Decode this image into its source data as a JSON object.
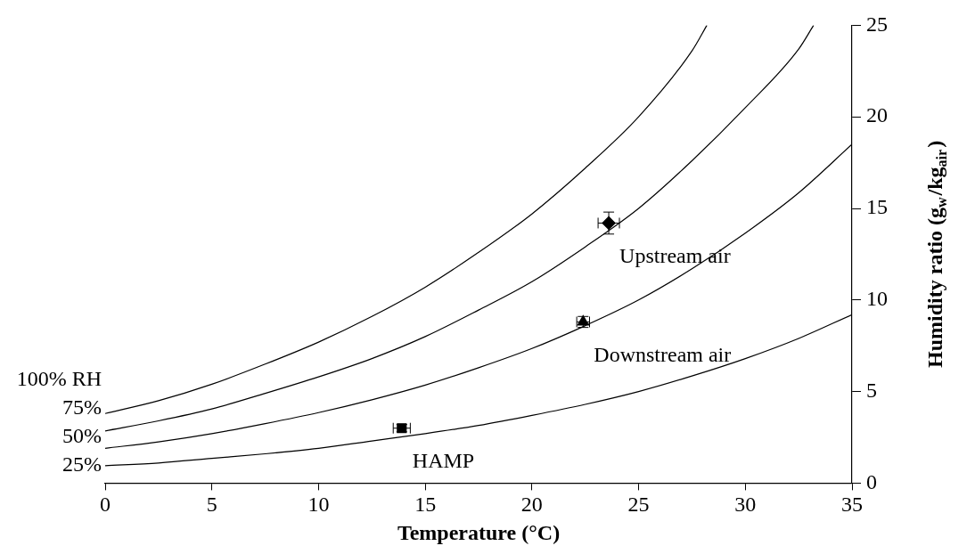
{
  "chart_data": {
    "type": "line",
    "xlabel": "Temperature (°C)",
    "ylabel": "Humidity ratio (g$_{w}$/kg$_{air}$)",
    "xlim": [
      0,
      35
    ],
    "ylim": [
      0,
      25
    ],
    "xticks": [
      0,
      5,
      10,
      15,
      20,
      25,
      30,
      35
    ],
    "yticks": [
      0,
      5,
      10,
      15,
      20,
      25
    ],
    "marker": "none",
    "series": [
      {
        "name": "100% RH",
        "color": "#000000",
        "x": [
          0,
          2.5,
          5,
          7.5,
          10,
          12.5,
          15,
          17.5,
          20,
          22.5,
          25,
          27.5,
          28.2
        ],
        "values": [
          3.8,
          4.5,
          5.4,
          6.5,
          7.7,
          9.1,
          10.7,
          12.6,
          14.7,
          17.2,
          20.0,
          23.6,
          25
        ]
      },
      {
        "name": "75%",
        "color": "#000000",
        "x": [
          0,
          2.5,
          5,
          7.5,
          10,
          12.5,
          15,
          17.5,
          20,
          22.5,
          25,
          27.5,
          30,
          32.5,
          33.2
        ],
        "values": [
          2.85,
          3.4,
          4.05,
          4.9,
          5.8,
          6.8,
          8.0,
          9.45,
          11.0,
          12.9,
          15.0,
          17.6,
          20.5,
          23.7,
          25
        ]
      },
      {
        "name": "50%",
        "color": "#000000",
        "x": [
          0,
          2.5,
          5,
          7.5,
          10,
          12.5,
          15,
          17.5,
          20,
          22.5,
          25,
          27.5,
          30,
          32.5,
          35
        ],
        "values": [
          1.9,
          2.25,
          2.7,
          3.25,
          3.85,
          4.55,
          5.35,
          6.3,
          7.35,
          8.6,
          10.0,
          11.7,
          13.65,
          15.85,
          18.5
        ]
      },
      {
        "name": "25%",
        "color": "#000000",
        "x": [
          0,
          2.5,
          5,
          7.5,
          10,
          12.5,
          15,
          17.5,
          20,
          22.5,
          25,
          27.5,
          30,
          32.5,
          35
        ],
        "values": [
          0.95,
          1.1,
          1.35,
          1.6,
          1.9,
          2.3,
          2.7,
          3.15,
          3.7,
          4.3,
          5.0,
          5.85,
          6.8,
          7.9,
          9.2
        ]
      },
      {
        "type": "scatter",
        "marker": "diamond",
        "color": "#000000",
        "x": [
          23.6
        ],
        "values": [
          14.2
        ],
        "errors": [
          0.6
        ],
        "xerrors": [
          0.5
        ]
      },
      {
        "type": "scatter",
        "marker": "triangle",
        "color": "#000000",
        "x": [
          22.4
        ],
        "values": [
          8.8
        ],
        "errors": [
          0.3
        ],
        "xerrors": [
          0.3
        ]
      },
      {
        "type": "scatter",
        "marker": "square",
        "color": "#000000",
        "x": [
          13.9
        ],
        "values": [
          3.0
        ],
        "errors": [
          0.2
        ],
        "xerrors": [
          0.4
        ]
      }
    ],
    "annotations": [
      {
        "text": "Upstream air",
        "x": 23.6,
        "y": 14.2
      },
      {
        "text": "Downstream air",
        "x": 22.4,
        "y": 8.8
      },
      {
        "text": "HAMP",
        "x": 13.9,
        "y": 3.0
      }
    ]
  }
}
